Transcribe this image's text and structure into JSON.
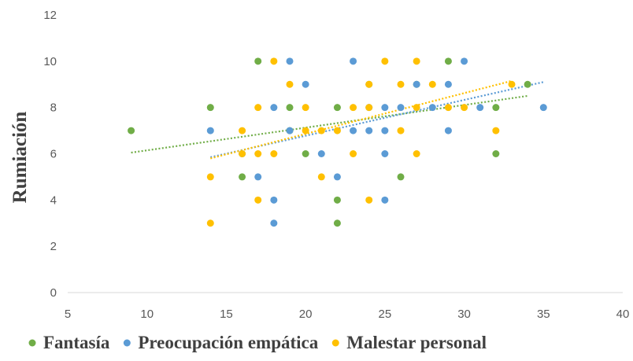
{
  "chart_data": {
    "type": "scatter",
    "title": "",
    "xlabel": "",
    "ylabel": "Rumiación",
    "xlim": [
      5,
      40
    ],
    "ylim": [
      0,
      12
    ],
    "x_ticks": [
      5,
      10,
      15,
      20,
      25,
      30,
      35,
      40
    ],
    "y_ticks": [
      0,
      2,
      4,
      6,
      8,
      10,
      12
    ],
    "grid": false,
    "legend_position": "bottom",
    "trendlines": "linear, dotted",
    "series": [
      {
        "name": "Fantasía",
        "color": "#70ad47",
        "points": [
          [
            9,
            7
          ],
          [
            14,
            8
          ],
          [
            16,
            5
          ],
          [
            17,
            10
          ],
          [
            19,
            8
          ],
          [
            19,
            7
          ],
          [
            20,
            6
          ],
          [
            22,
            8
          ],
          [
            22,
            4
          ],
          [
            22,
            3
          ],
          [
            24,
            9
          ],
          [
            26,
            5
          ],
          [
            27,
            9
          ],
          [
            29,
            10
          ],
          [
            32,
            8
          ],
          [
            32,
            6
          ],
          [
            34,
            9
          ]
        ],
        "trend": [
          [
            9,
            6.05
          ],
          [
            34,
            8.5
          ]
        ]
      },
      {
        "name": "Preocupación empática",
        "color": "#5b9bd5",
        "points": [
          [
            14,
            7
          ],
          [
            16,
            6
          ],
          [
            17,
            5
          ],
          [
            18,
            8
          ],
          [
            18,
            4
          ],
          [
            18,
            3
          ],
          [
            19,
            10
          ],
          [
            19,
            7
          ],
          [
            20,
            9
          ],
          [
            21,
            6
          ],
          [
            22,
            5
          ],
          [
            23,
            10
          ],
          [
            23,
            7
          ],
          [
            24,
            8
          ],
          [
            24,
            7
          ],
          [
            25,
            8
          ],
          [
            25,
            7
          ],
          [
            25,
            6
          ],
          [
            25,
            4
          ],
          [
            26,
            8
          ],
          [
            27,
            9
          ],
          [
            28,
            8
          ],
          [
            29,
            9
          ],
          [
            29,
            7
          ],
          [
            30,
            10
          ],
          [
            31,
            8
          ],
          [
            35,
            8
          ]
        ],
        "trend": [
          [
            14,
            5.85
          ],
          [
            35,
            9.1
          ]
        ]
      },
      {
        "name": "Malestar personal",
        "color": "#ffc000",
        "points": [
          [
            14,
            5
          ],
          [
            14,
            3
          ],
          [
            16,
            7
          ],
          [
            16,
            6
          ],
          [
            17,
            8
          ],
          [
            17,
            6
          ],
          [
            17,
            4
          ],
          [
            18,
            10
          ],
          [
            18,
            6
          ],
          [
            19,
            9
          ],
          [
            20,
            8
          ],
          [
            20,
            7
          ],
          [
            21,
            7
          ],
          [
            21,
            5
          ],
          [
            22,
            7
          ],
          [
            23,
            8
          ],
          [
            23,
            6
          ],
          [
            24,
            9
          ],
          [
            24,
            8
          ],
          [
            24,
            4
          ],
          [
            25,
            10
          ],
          [
            26,
            9
          ],
          [
            26,
            7
          ],
          [
            27,
            10
          ],
          [
            27,
            8
          ],
          [
            27,
            6
          ],
          [
            28,
            9
          ],
          [
            29,
            8
          ],
          [
            30,
            8
          ],
          [
            32,
            7
          ],
          [
            33,
            9
          ]
        ],
        "trend": [
          [
            14,
            5.8
          ],
          [
            33,
            9.15
          ]
        ]
      }
    ]
  }
}
